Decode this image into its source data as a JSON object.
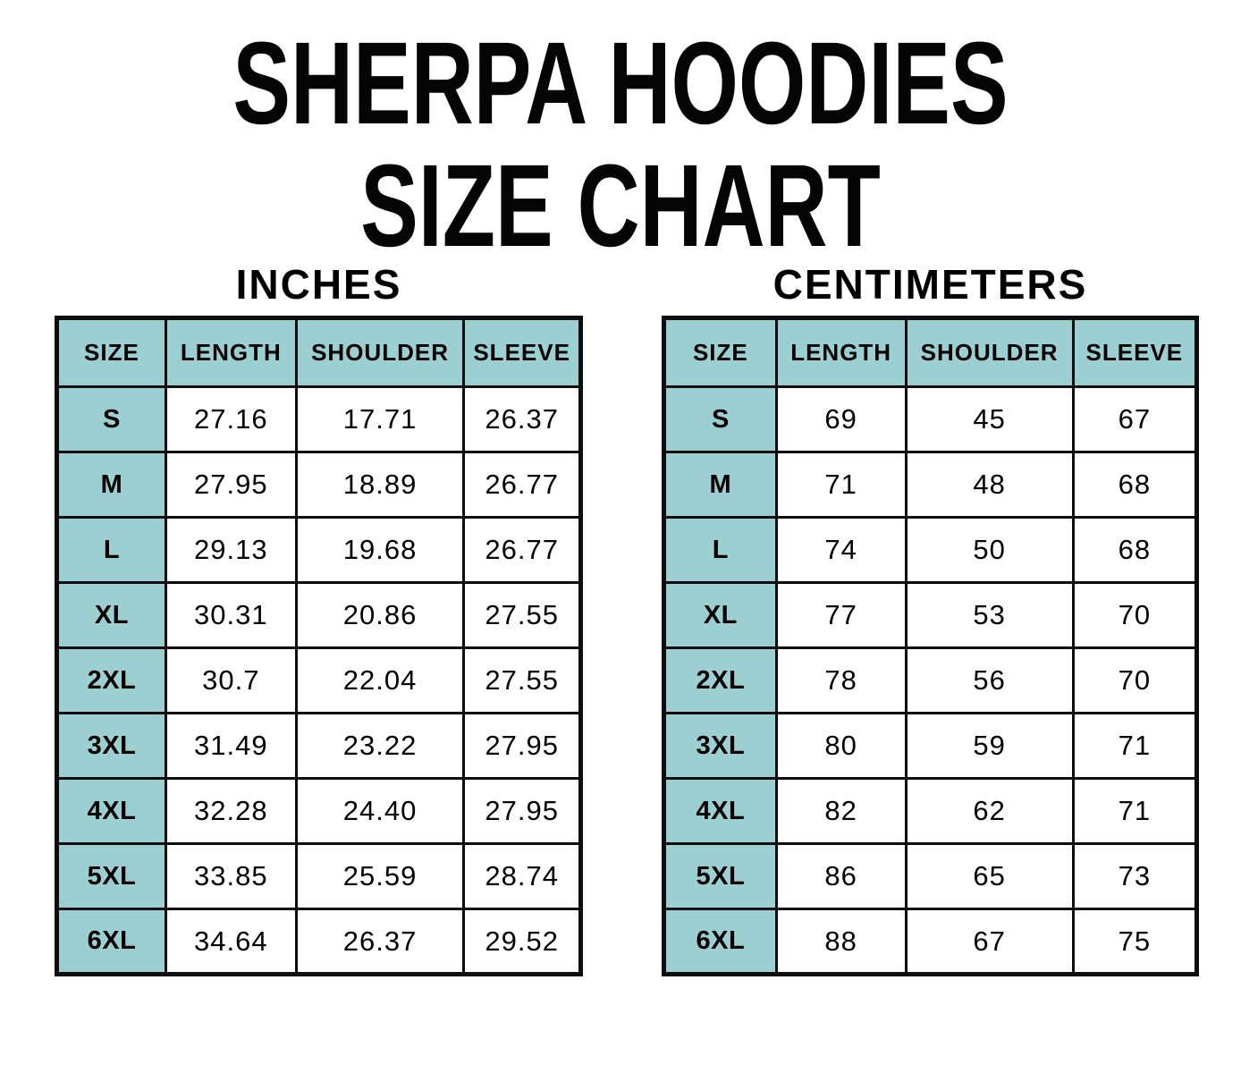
{
  "page": {
    "title_line1": "SHERPA HOODIES",
    "title_line2": "SIZE CHART"
  },
  "colors": {
    "accent_teal": "#9CCFD1",
    "border": "#0d0d0d",
    "background": "#ffffff",
    "text": "#000000"
  },
  "tables": [
    {
      "id": "inches",
      "subtitle": "INCHES",
      "columns": [
        "SIZE",
        "LENGTH",
        "SHOULDER",
        "SLEEVE"
      ],
      "col_widths_pct": [
        20.8,
        24.9,
        32.0,
        22.3
      ],
      "rows": [
        {
          "size": "S",
          "values": [
            "27.16",
            "17.71",
            "26.37"
          ]
        },
        {
          "size": "M",
          "values": [
            "27.95",
            "18.89",
            "26.77"
          ]
        },
        {
          "size": "L",
          "values": [
            "29.13",
            "19.68",
            "26.77"
          ]
        },
        {
          "size": "XL",
          "values": [
            "30.31",
            "20.86",
            "27.55"
          ]
        },
        {
          "size": "2XL",
          "values": [
            "30.7",
            "22.04",
            "27.55"
          ]
        },
        {
          "size": "3XL",
          "values": [
            "31.49",
            "23.22",
            "27.95"
          ]
        },
        {
          "size": "4XL",
          "values": [
            "32.28",
            "24.40",
            "27.95"
          ]
        },
        {
          "size": "5XL",
          "values": [
            "33.85",
            "25.59",
            "28.74"
          ]
        },
        {
          "size": "6XL",
          "values": [
            "34.64",
            "26.37",
            "29.52"
          ]
        }
      ]
    },
    {
      "id": "centimeters",
      "subtitle": "CENTIMETERS",
      "columns": [
        "SIZE",
        "LENGTH",
        "SHOULDER",
        "SLEEVE"
      ],
      "col_widths_pct": [
        21.1,
        24.3,
        31.4,
        23.2
      ],
      "rows": [
        {
          "size": "S",
          "values": [
            "69",
            "45",
            "67"
          ]
        },
        {
          "size": "M",
          "values": [
            "71",
            "48",
            "68"
          ]
        },
        {
          "size": "L",
          "values": [
            "74",
            "50",
            "68"
          ]
        },
        {
          "size": "XL",
          "values": [
            "77",
            "53",
            "70"
          ]
        },
        {
          "size": "2XL",
          "values": [
            "78",
            "56",
            "70"
          ]
        },
        {
          "size": "3XL",
          "values": [
            "80",
            "59",
            "71"
          ]
        },
        {
          "size": "4XL",
          "values": [
            "82",
            "62",
            "71"
          ]
        },
        {
          "size": "5XL",
          "values": [
            "86",
            "65",
            "73"
          ]
        },
        {
          "size": "6XL",
          "values": [
            "88",
            "67",
            "75"
          ]
        }
      ]
    }
  ]
}
